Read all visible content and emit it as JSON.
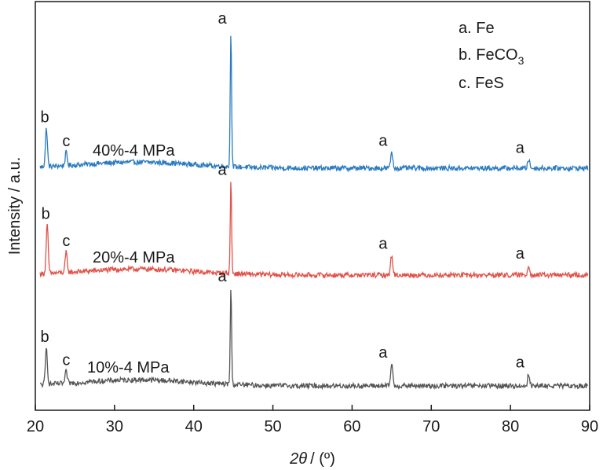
{
  "chart_data": {
    "type": "line",
    "xlabel_symbol": "2θ",
    "xlabel_unit": "/ (º)",
    "ylabel": "Intensity / a.u.",
    "xlim": [
      20,
      90
    ],
    "xticks": [
      20,
      30,
      40,
      50,
      60,
      70,
      80,
      90
    ],
    "grid": false,
    "legend_position": "top-right",
    "legend": [
      {
        "letter": "a.",
        "name": "Fe"
      },
      {
        "letter": "b.",
        "name": "FeCO",
        "sub": "3"
      },
      {
        "letter": "c.",
        "name": "FeS"
      }
    ],
    "series": [
      {
        "name": "40%-4 MPa",
        "color": "#2a7bc0",
        "baseline": 0.0,
        "peaks": [
          {
            "x": 21.4,
            "height": 0.38,
            "label": "b"
          },
          {
            "x": 23.9,
            "height": 0.13,
            "label": "c"
          },
          {
            "x": 44.7,
            "height": 1.36,
            "label": "a"
          },
          {
            "x": 65.0,
            "height": 0.16,
            "label": "a"
          },
          {
            "x": 82.3,
            "height": 0.09,
            "label": "a"
          }
        ]
      },
      {
        "name": "20%-4 MPa",
        "color": "#e0534a",
        "baseline": 0.0,
        "peaks": [
          {
            "x": 21.5,
            "height": 0.48,
            "label": "b"
          },
          {
            "x": 23.9,
            "height": 0.2,
            "label": "c"
          },
          {
            "x": 44.7,
            "height": 0.92,
            "label": "a"
          },
          {
            "x": 65.0,
            "height": 0.2,
            "label": "a"
          },
          {
            "x": 82.3,
            "height": 0.1,
            "label": "a"
          }
        ]
      },
      {
        "name": "10%-4 MPa",
        "color": "#555555",
        "baseline": 0.0,
        "peaks": [
          {
            "x": 21.4,
            "height": 0.36,
            "label": "b"
          },
          {
            "x": 23.9,
            "height": 0.12,
            "label": "c"
          },
          {
            "x": 44.7,
            "height": 0.96,
            "label": "a"
          },
          {
            "x": 65.0,
            "height": 0.22,
            "label": "a"
          },
          {
            "x": 82.3,
            "height": 0.12,
            "label": "a"
          }
        ]
      }
    ]
  }
}
